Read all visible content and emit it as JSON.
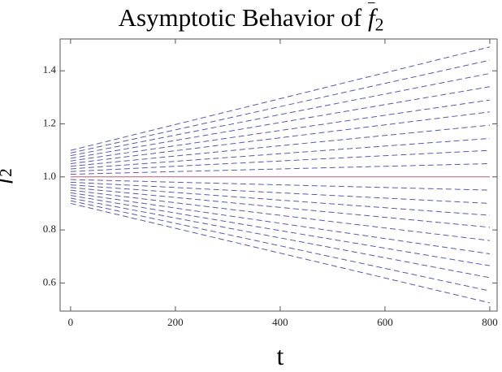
{
  "chart_data": {
    "type": "line",
    "title": "Asymptotic Behavior of",
    "title_symbol": "f",
    "title_subscript": "2",
    "ylabel_symbol": "f",
    "ylabel_subscript": "2",
    "xlabel": "t",
    "x": [
      0,
      800
    ],
    "xlim": [
      -20,
      814
    ],
    "ylim": [
      0.494,
      1.52
    ],
    "xticks": [
      0,
      200,
      400,
      600,
      800
    ],
    "yticks": [
      0.6,
      0.8,
      {
        "value": 1,
        "label": "1.0"
      },
      1.2,
      1.4
    ],
    "series": [
      {
        "color": "#5a5aa8",
        "dashed": true,
        "values": [
          1.01,
          1.05
        ]
      },
      {
        "color": "#5a5aa8",
        "dashed": true,
        "values": [
          1.02,
          1.1
        ]
      },
      {
        "color": "#5a5aa8",
        "dashed": true,
        "values": [
          1.03,
          1.145
        ]
      },
      {
        "color": "#5a5aa8",
        "dashed": true,
        "values": [
          1.04,
          1.195
        ]
      },
      {
        "color": "#5a5aa8",
        "dashed": true,
        "values": [
          1.05,
          1.245
        ]
      },
      {
        "color": "#5a5aa8",
        "dashed": true,
        "values": [
          1.06,
          1.29
        ]
      },
      {
        "color": "#5a5aa8",
        "dashed": true,
        "values": [
          1.07,
          1.34
        ]
      },
      {
        "color": "#5a5aa8",
        "dashed": true,
        "values": [
          1.08,
          1.39
        ]
      },
      {
        "color": "#5a5aa8",
        "dashed": true,
        "values": [
          1.09,
          1.44
        ]
      },
      {
        "color": "#5a5aa8",
        "dashed": true,
        "values": [
          1.1,
          1.49
        ]
      },
      {
        "color": "#5a5aa8",
        "dashed": true,
        "values": [
          0.99,
          0.95
        ]
      },
      {
        "color": "#5a5aa8",
        "dashed": true,
        "values": [
          0.98,
          0.9
        ]
      },
      {
        "color": "#5a5aa8",
        "dashed": true,
        "values": [
          0.97,
          0.855
        ]
      },
      {
        "color": "#5a5aa8",
        "dashed": true,
        "values": [
          0.96,
          0.81
        ]
      },
      {
        "color": "#5a5aa8",
        "dashed": true,
        "values": [
          0.95,
          0.76
        ]
      },
      {
        "color": "#5a5aa8",
        "dashed": true,
        "values": [
          0.94,
          0.71
        ]
      },
      {
        "color": "#5a5aa8",
        "dashed": true,
        "values": [
          0.93,
          0.665
        ]
      },
      {
        "color": "#5a5aa8",
        "dashed": true,
        "values": [
          0.92,
          0.62
        ]
      },
      {
        "color": "#5a5aa8",
        "dashed": true,
        "values": [
          0.91,
          0.57
        ]
      },
      {
        "color": "#5a5aa8",
        "dashed": true,
        "values": [
          0.9,
          0.525
        ]
      },
      {
        "color": "#c0587a",
        "dashed": false,
        "values": [
          1.0,
          1.0
        ]
      }
    ]
  }
}
